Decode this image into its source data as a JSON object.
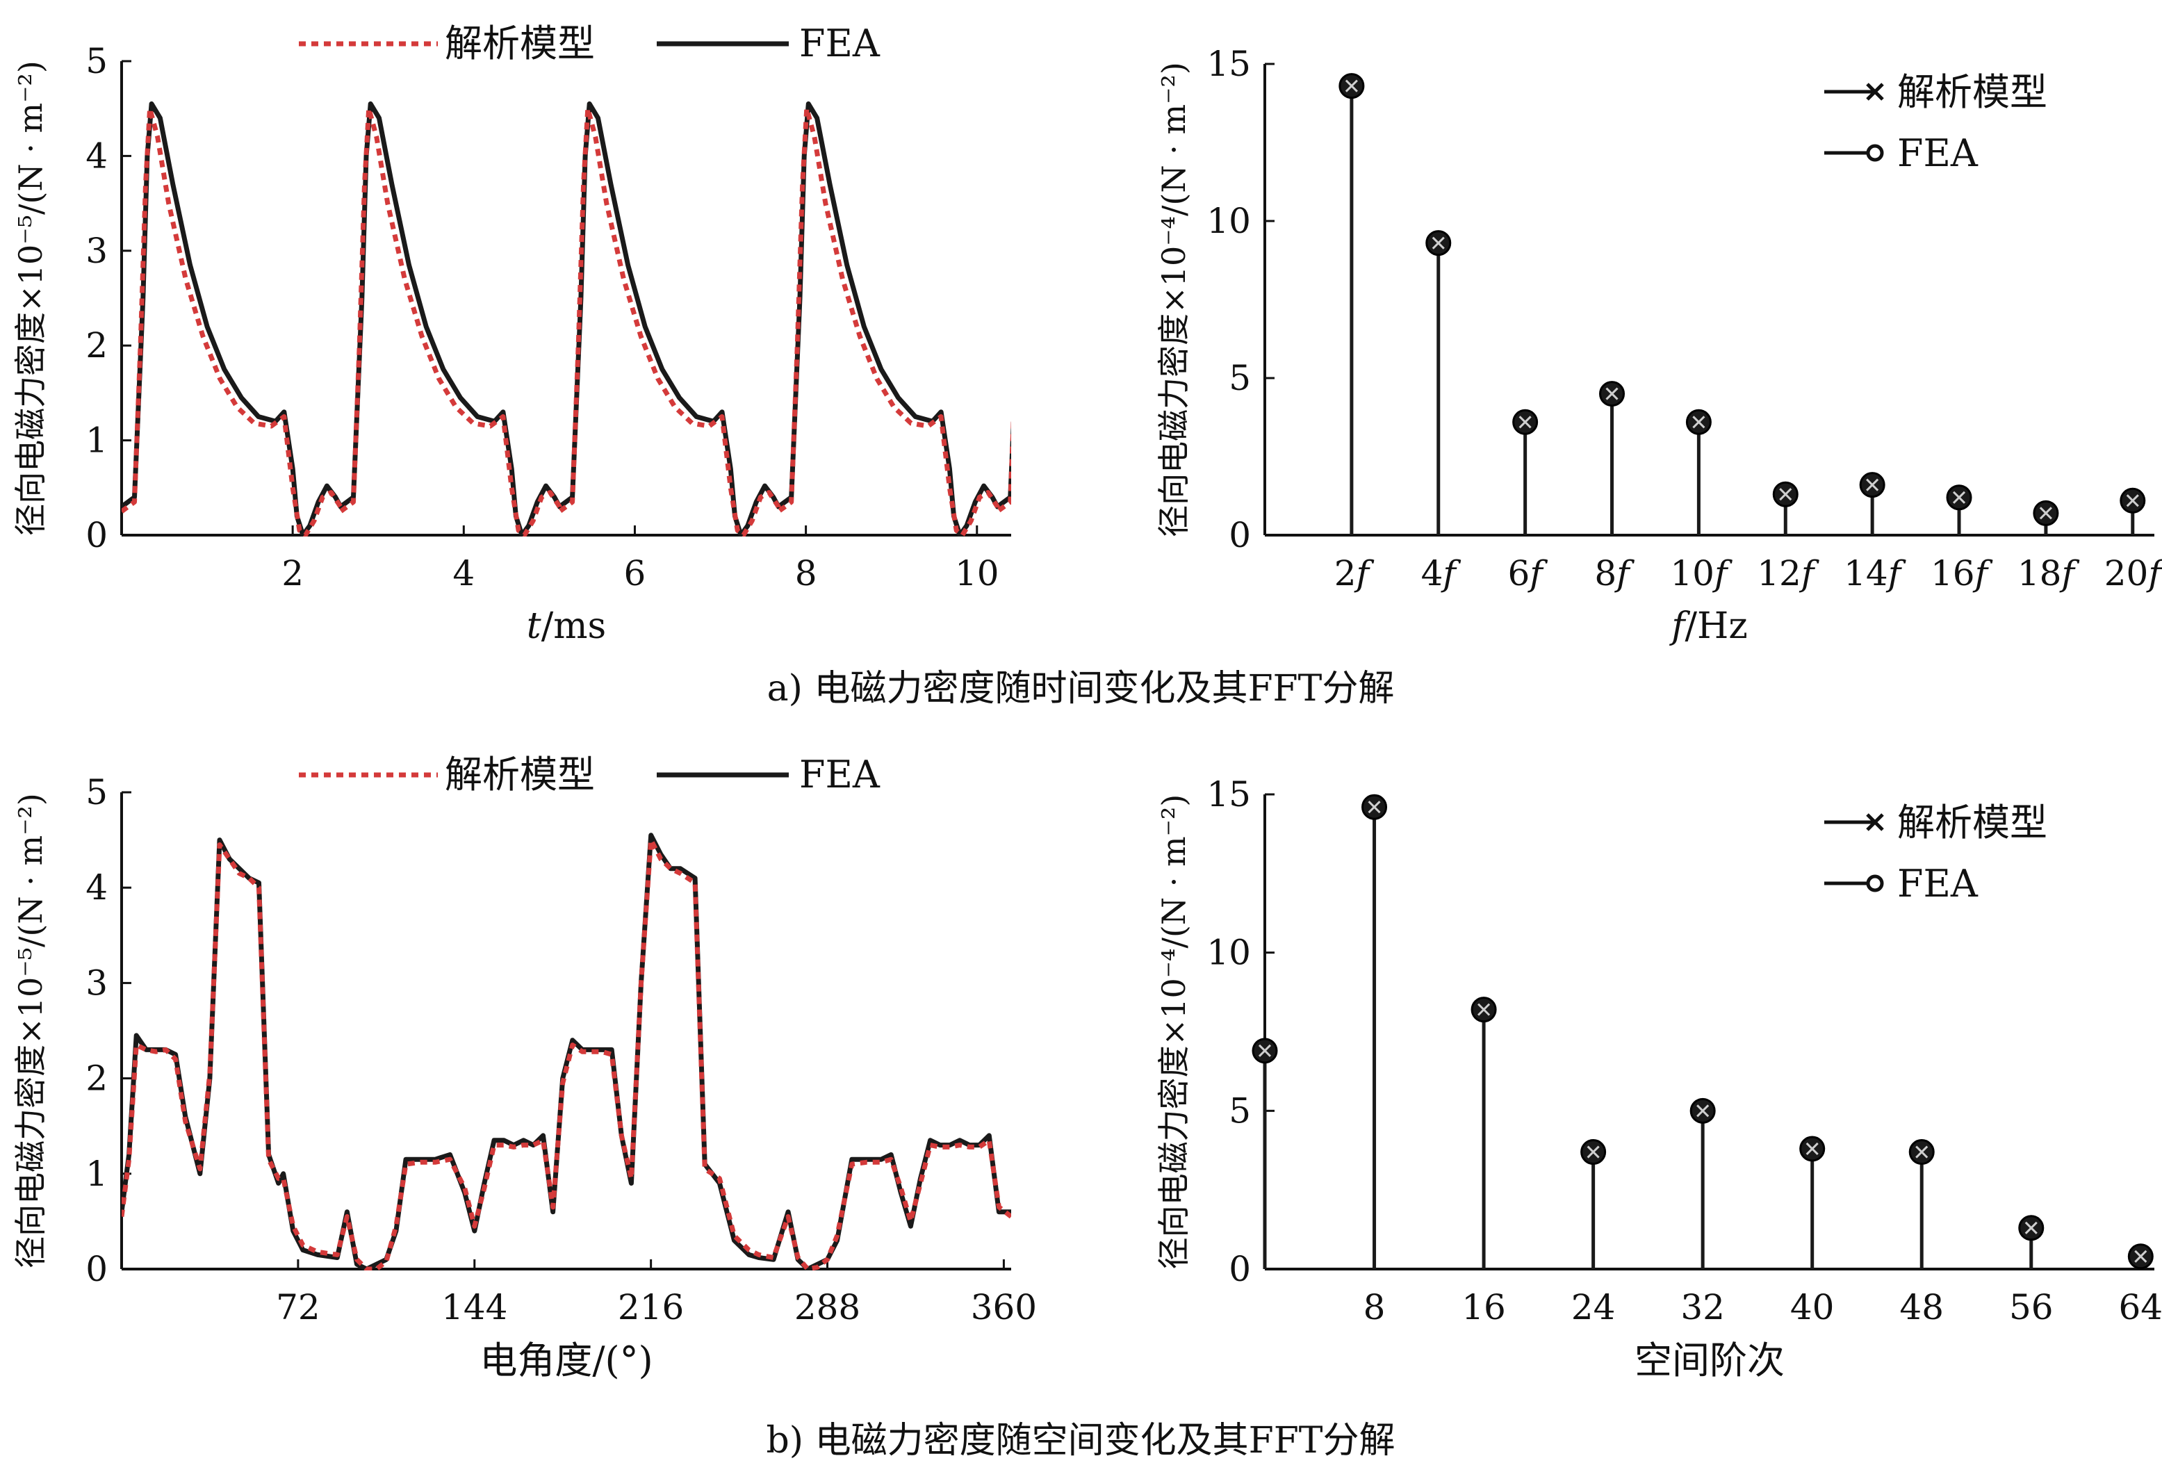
{
  "figure": {
    "caption_a": "a) 电磁力密度随时间变化及其FFT分解",
    "caption_b": "b) 电磁力密度随空间变化及其FFT分解"
  },
  "legend_line": {
    "analytical": "解析模型",
    "fea": "FEA"
  },
  "colors": {
    "analytical": "#d43a3a",
    "fea": "#1a1a1a",
    "stem": "#1a1a1a"
  },
  "chart_data": [
    {
      "id": "a_left",
      "type": "line",
      "xlabel_italic": "t",
      "xlabel_rest": "/ms",
      "ylabel": "径向电磁力密度×10⁻⁵/(N · m⁻²)",
      "xlim": [
        0,
        10.4
      ],
      "ylim": [
        0,
        5
      ],
      "xticks": [
        2,
        4,
        6,
        8,
        10
      ],
      "yticks": [
        0,
        1,
        2,
        3,
        4,
        5
      ],
      "legend_position": "top",
      "period": 2.56,
      "series": [
        {
          "name": "FEA",
          "style": "solid",
          "x": [
            0,
            0.15,
            0.25,
            0.3,
            0.35,
            0.45,
            0.6,
            0.8,
            1.0,
            1.2,
            1.4,
            1.6,
            1.8,
            1.9,
            2.0,
            2.05,
            2.12,
            2.2,
            2.3,
            2.4,
            2.5,
            2.56
          ],
          "y": [
            0.3,
            0.4,
            2.5,
            4.0,
            4.55,
            4.4,
            3.7,
            2.85,
            2.2,
            1.75,
            1.45,
            1.25,
            1.2,
            1.3,
            0.7,
            0.2,
            0.0,
            0.1,
            0.35,
            0.52,
            0.4,
            0.3
          ]
        },
        {
          "name": "解析模型",
          "style": "dashed",
          "x": [
            0,
            0.15,
            0.22,
            0.28,
            0.33,
            0.42,
            0.55,
            0.75,
            0.95,
            1.15,
            1.35,
            1.55,
            1.75,
            1.9,
            2.0,
            2.08,
            2.15,
            2.25,
            2.35,
            2.45,
            2.56
          ],
          "y": [
            0.25,
            0.35,
            2.0,
            3.7,
            4.5,
            4.2,
            3.5,
            2.7,
            2.1,
            1.65,
            1.35,
            1.18,
            1.15,
            1.25,
            0.5,
            0.05,
            0.0,
            0.15,
            0.4,
            0.45,
            0.3
          ]
        }
      ]
    },
    {
      "id": "a_right",
      "type": "stem",
      "xlabel_italic": "f",
      "xlabel_rest": "/Hz",
      "ylabel": "径向电磁力密度×10⁻⁴/(N · m⁻²)",
      "xlim": [
        0,
        20.5
      ],
      "ylim": [
        0,
        15
      ],
      "yticks": [
        0,
        5,
        10,
        15
      ],
      "legend_position": "top-right",
      "categories": [
        {
          "num": "2",
          "italic": "f"
        },
        {
          "num": "4",
          "italic": "f"
        },
        {
          "num": "6",
          "italic": "f"
        },
        {
          "num": "8",
          "italic": "f"
        },
        {
          "num": "10",
          "italic": "f"
        },
        {
          "num": "12",
          "italic": "f"
        },
        {
          "num": "14",
          "italic": "f"
        },
        {
          "num": "16",
          "italic": "f"
        },
        {
          "num": "18",
          "italic": "f"
        },
        {
          "num": "20",
          "italic": "f"
        }
      ],
      "x": [
        2,
        4,
        6,
        8,
        10,
        12,
        14,
        16,
        18,
        20
      ],
      "series": [
        {
          "name": "解析模型",
          "marker": "x",
          "values": [
            14.3,
            9.3,
            3.6,
            4.5,
            3.6,
            1.3,
            1.6,
            1.2,
            0.7,
            1.1
          ]
        },
        {
          "name": "FEA",
          "marker": "o",
          "values": [
            14.3,
            9.3,
            3.6,
            4.5,
            3.6,
            1.3,
            1.6,
            1.2,
            0.7,
            1.1
          ]
        }
      ]
    },
    {
      "id": "b_left",
      "type": "line",
      "xlabel": "电角度/(°)",
      "ylabel": "径向电磁力密度×10⁻⁵/(N · m⁻²)",
      "xlim": [
        0,
        363
      ],
      "ylim": [
        0,
        5
      ],
      "xticks": [
        72,
        144,
        216,
        288,
        360
      ],
      "yticks": [
        0,
        1,
        2,
        3,
        4,
        5
      ],
      "legend_position": "top",
      "series": [
        {
          "name": "FEA",
          "style": "solid",
          "x": [
            0,
            3,
            6,
            10,
            14,
            18,
            22,
            26,
            32,
            36,
            40,
            44,
            48,
            52,
            56,
            60,
            64,
            66,
            70,
            74,
            80,
            88,
            92,
            96,
            100,
            104,
            108,
            112,
            116,
            122,
            128,
            134,
            140,
            144,
            148,
            152,
            156,
            160,
            164,
            168,
            172,
            176,
            180,
            184,
            188,
            192,
            196,
            200,
            204,
            208,
            212,
            216,
            220,
            224,
            228,
            234,
            238,
            244,
            250,
            256,
            260,
            266,
            272,
            276,
            280,
            284,
            288,
            292,
            298,
            304,
            310,
            314,
            318,
            322,
            326,
            330,
            334,
            338,
            342,
            346,
            350,
            354,
            358,
            363
          ],
          "y": [
            0.6,
            1.2,
            2.45,
            2.3,
            2.3,
            2.3,
            2.25,
            1.6,
            1.0,
            2.0,
            4.5,
            4.3,
            4.2,
            4.1,
            4.05,
            1.2,
            0.9,
            1.0,
            0.4,
            0.2,
            0.15,
            0.12,
            0.6,
            0.05,
            0.0,
            0.05,
            0.1,
            0.4,
            1.15,
            1.15,
            1.15,
            1.2,
            0.8,
            0.4,
            0.9,
            1.35,
            1.35,
            1.3,
            1.35,
            1.3,
            1.4,
            0.6,
            2.0,
            2.4,
            2.3,
            2.3,
            2.3,
            2.3,
            1.4,
            0.9,
            3.0,
            4.55,
            4.35,
            4.2,
            4.2,
            4.1,
            1.1,
            0.9,
            0.3,
            0.15,
            0.12,
            0.1,
            0.6,
            0.1,
            0.0,
            0.05,
            0.1,
            0.3,
            1.15,
            1.15,
            1.15,
            1.2,
            0.8,
            0.45,
            0.95,
            1.35,
            1.3,
            1.3,
            1.35,
            1.3,
            1.3,
            1.4,
            0.6,
            0.6
          ]
        },
        {
          "name": "解析模型",
          "style": "dashed",
          "x": [
            0,
            3,
            6,
            10,
            14,
            18,
            22,
            26,
            32,
            36,
            40,
            44,
            48,
            52,
            56,
            60,
            64,
            66,
            70,
            74,
            80,
            88,
            92,
            96,
            100,
            104,
            108,
            112,
            116,
            122,
            128,
            134,
            140,
            144,
            148,
            152,
            156,
            160,
            164,
            168,
            172,
            176,
            180,
            184,
            188,
            192,
            196,
            200,
            204,
            208,
            212,
            216,
            220,
            224,
            228,
            234,
            238,
            244,
            250,
            256,
            260,
            266,
            272,
            276,
            280,
            284,
            288,
            292,
            298,
            304,
            310,
            314,
            318,
            322,
            326,
            330,
            334,
            338,
            342,
            346,
            350,
            354,
            358,
            363
          ],
          "y": [
            0.55,
            1.15,
            2.35,
            2.3,
            2.28,
            2.3,
            2.2,
            1.55,
            1.05,
            2.05,
            4.45,
            4.3,
            4.15,
            4.1,
            4.0,
            1.15,
            0.95,
            0.95,
            0.45,
            0.25,
            0.18,
            0.15,
            0.55,
            0.1,
            0.0,
            0.0,
            0.08,
            0.45,
            1.1,
            1.12,
            1.12,
            1.15,
            0.85,
            0.45,
            0.85,
            1.3,
            1.3,
            1.28,
            1.3,
            1.3,
            1.35,
            0.65,
            1.95,
            2.35,
            2.28,
            2.28,
            2.28,
            2.25,
            1.4,
            0.95,
            3.0,
            4.5,
            4.3,
            4.2,
            4.15,
            4.05,
            1.05,
            0.95,
            0.35,
            0.2,
            0.15,
            0.12,
            0.55,
            0.12,
            0.0,
            0.02,
            0.1,
            0.35,
            1.1,
            1.12,
            1.12,
            1.15,
            0.85,
            0.5,
            0.9,
            1.3,
            1.28,
            1.28,
            1.3,
            1.28,
            1.28,
            1.35,
            0.65,
            0.55
          ]
        }
      ]
    },
    {
      "id": "b_right",
      "type": "stem",
      "xlabel": "空间阶次",
      "ylabel": "径向电磁力密度×10⁻⁴/(N · m⁻²)",
      "xlim": [
        0,
        65
      ],
      "ylim": [
        0,
        15
      ],
      "yticks": [
        0,
        5,
        10,
        15
      ],
      "xticks": [
        8,
        16,
        24,
        32,
        40,
        48,
        56,
        64
      ],
      "legend_position": "top-right",
      "x": [
        0,
        8,
        16,
        24,
        32,
        40,
        48,
        56,
        64
      ],
      "series": [
        {
          "name": "解析模型",
          "marker": "x",
          "values": [
            6.9,
            14.6,
            8.2,
            3.7,
            5.0,
            3.8,
            3.7,
            1.3,
            0.4
          ]
        },
        {
          "name": "FEA",
          "marker": "o",
          "values": [
            6.9,
            14.6,
            8.2,
            3.7,
            5.0,
            3.8,
            3.7,
            1.3,
            0.4
          ]
        }
      ]
    }
  ]
}
